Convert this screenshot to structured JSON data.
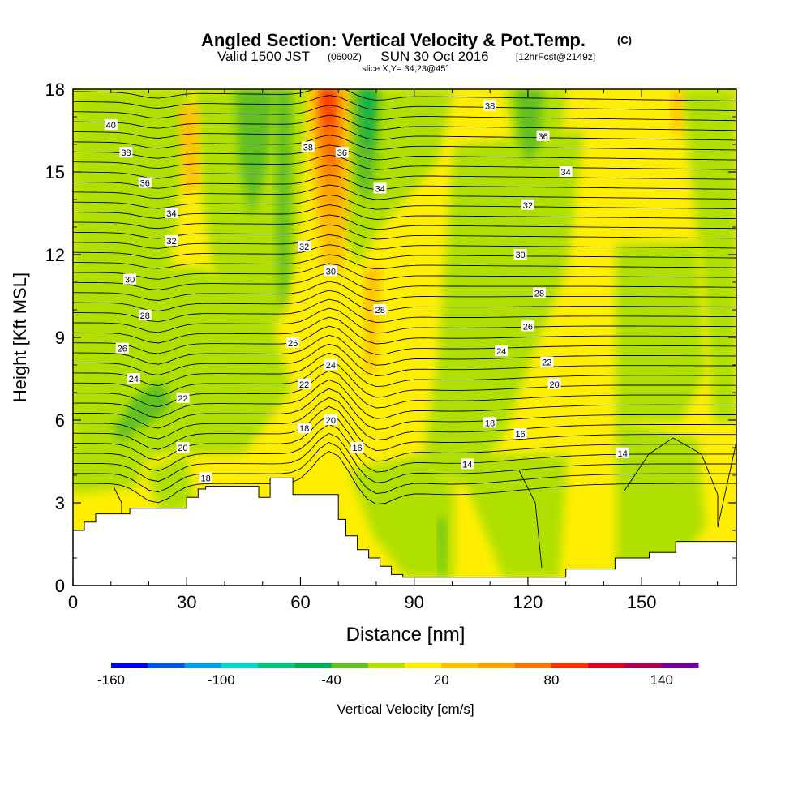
{
  "chart_data": {
    "type": "heatmap",
    "title": "Angled Section: Vertical Velocity & Pot.Temp.",
    "title_unit": "(C)",
    "subtitle_valid": "Valid 1500 JST",
    "subtitle_utc": "(0600Z)",
    "subtitle_date": "SUN 30 Oct 2016",
    "subtitle_fcst": "[12hrFcst@2149z]",
    "slice_label": "slice X,Y= 34,23@45°",
    "xlabel": "Distance [nm]",
    "ylabel": "Height [Kft MSL]",
    "xlim": [
      0,
      175
    ],
    "ylim": [
      0,
      18
    ],
    "xticks": [
      0,
      30,
      60,
      90,
      120,
      150
    ],
    "yticks": [
      0,
      3,
      6,
      9,
      12,
      15,
      18
    ],
    "colorbar": {
      "label": "Vertical Velocity [cm/s]",
      "min": -160,
      "max": 160,
      "step": 20,
      "tick_labels": [
        "-160",
        "-100",
        "-40",
        "20",
        "80",
        "140"
      ],
      "tick_values": [
        -160,
        -100,
        -40,
        20,
        80,
        140
      ],
      "colors": [
        "#0000ee",
        "#0055ee",
        "#00a0ee",
        "#00d8c8",
        "#00c878",
        "#00b050",
        "#60c020",
        "#b0e000",
        "#ffee00",
        "#ffc000",
        "#ffa000",
        "#ff7000",
        "#ff3000",
        "#e00020",
        "#b00050",
        "#7000a0"
      ]
    },
    "contour_field": "Potential Temperature (C)",
    "contour_labels": [
      {
        "text": "40",
        "x": 10,
        "y": 16.7
      },
      {
        "text": "38",
        "x": 14,
        "y": 15.7
      },
      {
        "text": "36",
        "x": 19,
        "y": 14.6
      },
      {
        "text": "34",
        "x": 26,
        "y": 13.5
      },
      {
        "text": "32",
        "x": 26,
        "y": 12.5
      },
      {
        "text": "30",
        "x": 15,
        "y": 11.1
      },
      {
        "text": "28",
        "x": 19,
        "y": 9.8
      },
      {
        "text": "26",
        "x": 13,
        "y": 8.6
      },
      {
        "text": "24",
        "x": 16,
        "y": 7.5
      },
      {
        "text": "22",
        "x": 29,
        "y": 6.8
      },
      {
        "text": "20",
        "x": 29,
        "y": 5.0
      },
      {
        "text": "18",
        "x": 35,
        "y": 3.9
      },
      {
        "text": "38",
        "x": 62,
        "y": 15.9
      },
      {
        "text": "36",
        "x": 71,
        "y": 15.7
      },
      {
        "text": "34",
        "x": 81,
        "y": 14.4
      },
      {
        "text": "32",
        "x": 61,
        "y": 12.3
      },
      {
        "text": "30",
        "x": 68,
        "y": 11.4
      },
      {
        "text": "28",
        "x": 81,
        "y": 10.0
      },
      {
        "text": "26",
        "x": 58,
        "y": 8.8
      },
      {
        "text": "24",
        "x": 68,
        "y": 8.0
      },
      {
        "text": "22",
        "x": 61,
        "y": 7.3
      },
      {
        "text": "20",
        "x": 68,
        "y": 6.0
      },
      {
        "text": "18",
        "x": 61,
        "y": 5.7
      },
      {
        "text": "16",
        "x": 75,
        "y": 5.0
      },
      {
        "text": "38",
        "x": 110,
        "y": 17.4
      },
      {
        "text": "36",
        "x": 124,
        "y": 16.3
      },
      {
        "text": "34",
        "x": 130,
        "y": 15.0
      },
      {
        "text": "32",
        "x": 120,
        "y": 13.8
      },
      {
        "text": "30",
        "x": 118,
        "y": 12.0
      },
      {
        "text": "28",
        "x": 123,
        "y": 10.6
      },
      {
        "text": "26",
        "x": 120,
        "y": 9.4
      },
      {
        "text": "24",
        "x": 113,
        "y": 8.5
      },
      {
        "text": "22",
        "x": 125,
        "y": 8.1
      },
      {
        "text": "20",
        "x": 127,
        "y": 7.3
      },
      {
        "text": "18",
        "x": 110,
        "y": 5.9
      },
      {
        "text": "16",
        "x": 118,
        "y": 5.5
      },
      {
        "text": "14",
        "x": 104,
        "y": 4.4
      },
      {
        "text": "14",
        "x": 145,
        "y": 4.8
      }
    ],
    "terrain": [
      [
        0,
        2
      ],
      [
        3,
        2
      ],
      [
        3,
        2.3
      ],
      [
        6,
        2.3
      ],
      [
        6,
        2.6
      ],
      [
        15,
        2.6
      ],
      [
        15,
        2.8
      ],
      [
        30,
        2.8
      ],
      [
        30,
        3.2
      ],
      [
        33,
        3.2
      ],
      [
        33,
        3.5
      ],
      [
        35,
        3.5
      ],
      [
        35,
        3.6
      ],
      [
        49,
        3.6
      ],
      [
        49,
        3.2
      ],
      [
        52,
        3.2
      ],
      [
        52,
        3.9
      ],
      [
        58,
        3.9
      ],
      [
        58,
        3.3
      ],
      [
        70,
        3.3
      ],
      [
        70,
        2.4
      ],
      [
        72,
        2.4
      ],
      [
        72,
        1.8
      ],
      [
        75,
        1.8
      ],
      [
        75,
        1.3
      ],
      [
        78,
        1.3
      ],
      [
        78,
        1.0
      ],
      [
        81,
        1.0
      ],
      [
        81,
        0.7
      ],
      [
        84,
        0.7
      ],
      [
        84,
        0.4
      ],
      [
        87,
        0.4
      ],
      [
        87,
        0.3
      ],
      [
        130,
        0.3
      ],
      [
        130,
        0.6
      ],
      [
        143,
        0.6
      ],
      [
        143,
        1.0
      ],
      [
        152,
        1.0
      ],
      [
        152,
        1.2
      ],
      [
        159,
        1.2
      ],
      [
        159,
        1.6
      ],
      [
        175,
        1.6
      ]
    ]
  }
}
